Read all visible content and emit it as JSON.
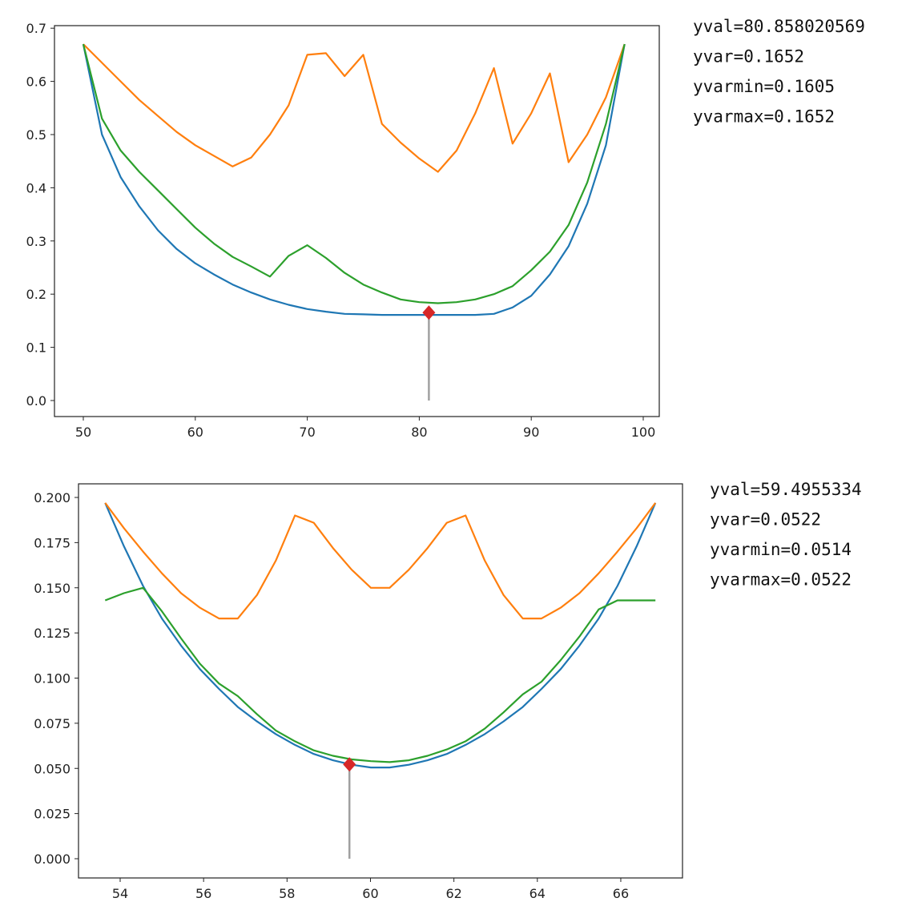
{
  "colors": {
    "blue": "#1f77b4",
    "orange": "#ff7f0e",
    "green": "#2ca02c",
    "marker": "#d62728",
    "stem": "#a0a0a0"
  },
  "chart_data": [
    {
      "type": "line",
      "xlim": [
        46.6,
        101.7
      ],
      "ylim": [
        -0.03,
        0.705
      ],
      "x_ticks": [
        50,
        60,
        70,
        80,
        90,
        100
      ],
      "y_ticks": [
        "0.0",
        "0.1",
        "0.2",
        "0.3",
        "0.4",
        "0.5",
        "0.6",
        "0.7"
      ],
      "x": [
        50,
        51.67,
        53.33,
        55,
        56.67,
        58.33,
        60,
        61.67,
        63.33,
        65,
        66.67,
        68.33,
        70,
        71.67,
        73.33,
        75,
        76.67,
        78.33,
        80,
        81.67,
        83.33,
        85,
        86.67,
        88.33,
        90,
        91.67,
        93.33,
        95,
        96.67,
        98.33
      ],
      "series": [
        {
          "color": "blue",
          "values": [
            0.67,
            0.5,
            0.42,
            0.365,
            0.32,
            0.285,
            0.258,
            0.237,
            0.218,
            0.203,
            0.19,
            0.18,
            0.172,
            0.167,
            0.163,
            0.162,
            0.161,
            0.161,
            0.161,
            0.161,
            0.161,
            0.161,
            0.163,
            0.175,
            0.197,
            0.237,
            0.29,
            0.37,
            0.48,
            0.67
          ]
        },
        {
          "color": "orange",
          "values": [
            0.67,
            0.635,
            0.6,
            0.565,
            0.535,
            0.505,
            0.48,
            0.46,
            0.44,
            0.457,
            0.5,
            0.555,
            0.65,
            0.653,
            0.61,
            0.65,
            0.52,
            0.485,
            0.455,
            0.43,
            0.47,
            0.54,
            0.625,
            0.483,
            0.54,
            0.615,
            0.448,
            0.5,
            0.57,
            0.67
          ]
        },
        {
          "color": "green",
          "values": [
            0.67,
            0.53,
            0.47,
            0.43,
            0.395,
            0.36,
            0.325,
            0.295,
            0.27,
            0.252,
            0.233,
            0.272,
            0.292,
            0.268,
            0.24,
            0.218,
            0.203,
            0.19,
            0.185,
            0.183,
            0.185,
            0.19,
            0.2,
            0.215,
            0.245,
            0.28,
            0.33,
            0.41,
            0.52,
            0.67
          ]
        }
      ],
      "marker": {
        "x": 80.858020569,
        "y": 0.1652
      },
      "annotations": [
        "yval=80.858020569",
        "yvar=0.1652",
        "yvarmin=0.1605",
        "yvarmax=0.1652"
      ]
    },
    {
      "type": "line",
      "xlim": [
        53.0,
        67.5
      ],
      "ylim": [
        -0.0105,
        0.2075
      ],
      "x_ticks": [
        54,
        56,
        58,
        60,
        62,
        64,
        66
      ],
      "y_ticks": [
        "0.000",
        "0.025",
        "0.050",
        "0.075",
        "0.100",
        "0.125",
        "0.150",
        "0.175",
        "0.200"
      ],
      "x": [
        53.64,
        54.09,
        54.55,
        55.0,
        55.46,
        55.91,
        56.37,
        56.82,
        57.28,
        57.73,
        58.19,
        58.64,
        59.1,
        59.55,
        60.01,
        60.46,
        60.92,
        61.37,
        61.83,
        62.28,
        62.74,
        63.19,
        63.65,
        64.1,
        64.56,
        65.01,
        65.47,
        65.92,
        66.38,
        66.83
      ],
      "series": [
        {
          "color": "blue",
          "values": [
            0.197,
            0.173,
            0.151,
            0.133,
            0.118,
            0.105,
            0.094,
            0.084,
            0.076,
            0.069,
            0.063,
            0.058,
            0.0545,
            0.052,
            0.0505,
            0.0505,
            0.052,
            0.0545,
            0.058,
            0.063,
            0.069,
            0.076,
            0.084,
            0.094,
            0.105,
            0.118,
            0.133,
            0.151,
            0.173,
            0.197
          ]
        },
        {
          "color": "orange",
          "values": [
            0.197,
            0.183,
            0.17,
            0.158,
            0.147,
            0.139,
            0.133,
            0.133,
            0.146,
            0.165,
            0.19,
            0.186,
            0.172,
            0.16,
            0.15,
            0.15,
            0.16,
            0.172,
            0.186,
            0.19,
            0.165,
            0.146,
            0.133,
            0.133,
            0.139,
            0.147,
            0.158,
            0.17,
            0.183,
            0.197
          ]
        },
        {
          "color": "green",
          "values": [
            0.143,
            0.147,
            0.15,
            0.137,
            0.122,
            0.108,
            0.097,
            0.09,
            0.08,
            0.071,
            0.065,
            0.06,
            0.057,
            0.055,
            0.054,
            0.0535,
            0.0545,
            0.057,
            0.0605,
            0.065,
            0.072,
            0.081,
            0.091,
            0.098,
            0.11,
            0.123,
            0.138,
            0.143,
            0.143,
            0.143
          ]
        }
      ],
      "marker": {
        "x": 59.4955334,
        "y": 0.0522
      },
      "annotations": [
        "yval=59.4955334",
        "yvar=0.0522",
        "yvarmin=0.0514",
        "yvarmax=0.0522"
      ]
    }
  ]
}
